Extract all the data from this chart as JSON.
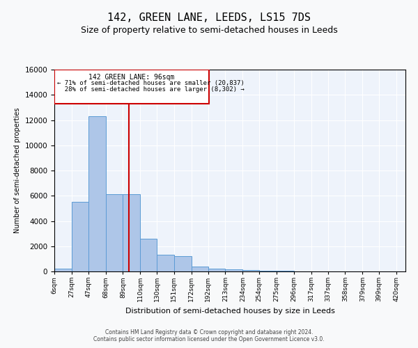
{
  "title": "142, GREEN LANE, LEEDS, LS15 7DS",
  "subtitle": "Size of property relative to semi-detached houses in Leeds",
  "xlabel": "Distribution of semi-detached houses by size in Leeds",
  "ylabel": "Number of semi-detached properties",
  "footer_line1": "Contains HM Land Registry data © Crown copyright and database right 2024.",
  "footer_line2": "Contains public sector information licensed under the Open Government Licence v3.0.",
  "bin_labels": [
    "6sqm",
    "27sqm",
    "47sqm",
    "68sqm",
    "89sqm",
    "110sqm",
    "130sqm",
    "151sqm",
    "172sqm",
    "192sqm",
    "213sqm",
    "234sqm",
    "254sqm",
    "275sqm",
    "296sqm",
    "317sqm",
    "337sqm",
    "358sqm",
    "379sqm",
    "399sqm",
    "420sqm"
  ],
  "bin_edges": [
    6,
    27,
    47,
    68,
    89,
    110,
    130,
    151,
    172,
    192,
    213,
    234,
    254,
    275,
    296,
    317,
    337,
    358,
    379,
    399,
    420
  ],
  "bar_heights": [
    200,
    5500,
    12300,
    6100,
    6100,
    2600,
    1300,
    1200,
    400,
    200,
    150,
    100,
    50,
    30,
    20,
    10,
    5,
    5,
    3,
    2
  ],
  "bar_color": "#aec6e8",
  "bar_edge_color": "#5b9bd5",
  "property_sqm": 96,
  "property_label": "142 GREEN LANE: 96sqm",
  "pct_smaller": 71,
  "pct_larger": 28,
  "count_smaller": "20,837",
  "count_larger": "8,302",
  "red_line_color": "#cc0000",
  "annotation_box_color": "#cc0000",
  "ylim": [
    0,
    16000
  ],
  "yticks": [
    0,
    2000,
    4000,
    6000,
    8000,
    10000,
    12000,
    14000,
    16000
  ],
  "background_color": "#eef3fb",
  "grid_color": "#ffffff",
  "title_fontsize": 11,
  "subtitle_fontsize": 9,
  "fig_facecolor": "#f8f9fa"
}
